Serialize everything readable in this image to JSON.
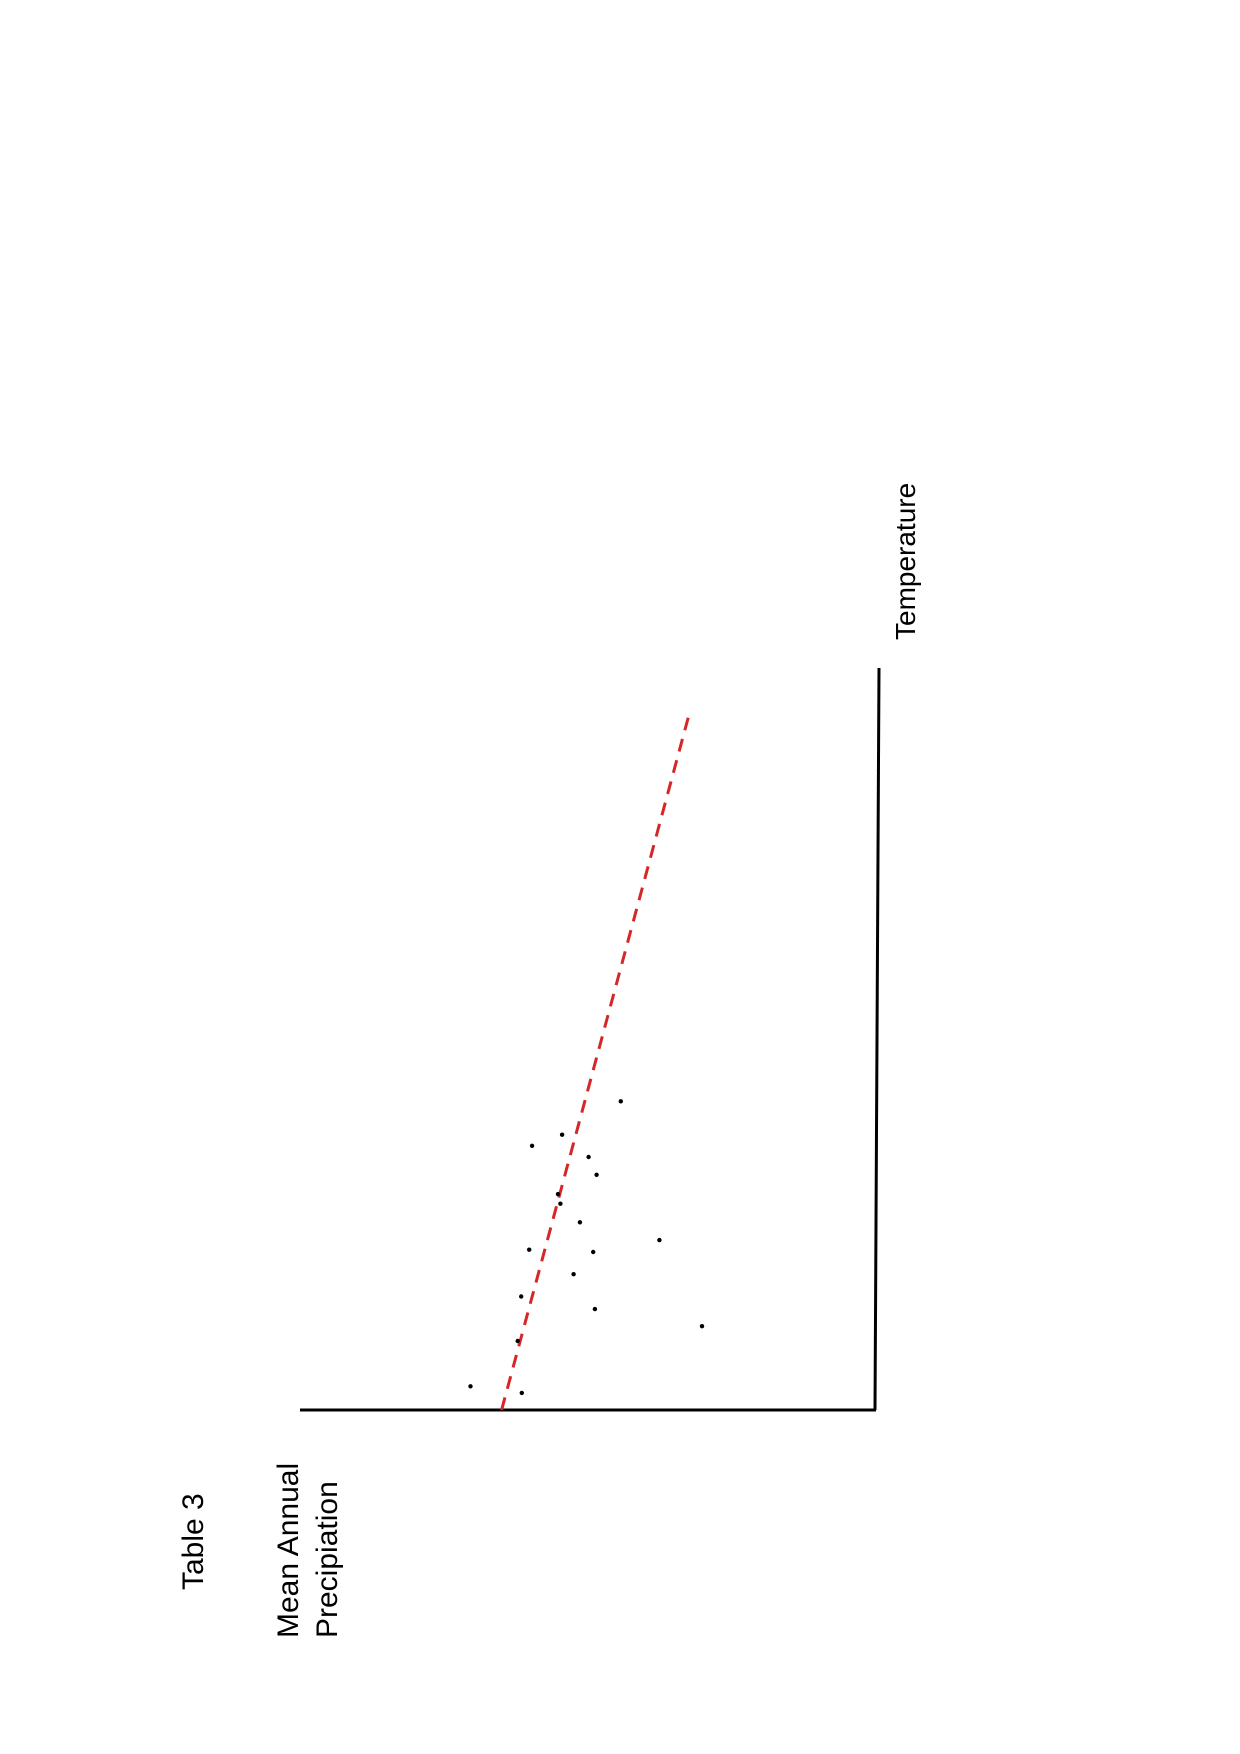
{
  "page_title": "Table 3",
  "chart_data": {
    "type": "scatter",
    "title": "Table 3",
    "xlabel": "Temperature",
    "ylabel_lines": [
      "Mean Annual",
      "Precipiation"
    ],
    "grid": false,
    "orientation": "rotated-90-ccw",
    "xlim": [
      0,
      100
    ],
    "ylim": [
      0,
      100
    ],
    "points": [
      {
        "x": 3.2,
        "y": 70.4
      },
      {
        "x": 9.3,
        "y": 62.2
      },
      {
        "x": 15.3,
        "y": 61.6
      },
      {
        "x": 18.3,
        "y": 52.5
      },
      {
        "x": 21.3,
        "y": 49.1
      },
      {
        "x": 22.9,
        "y": 37.6
      },
      {
        "x": 29.1,
        "y": 55.2
      },
      {
        "x": 35.6,
        "y": 59.7
      },
      {
        "x": 41.6,
        "y": 44.3
      },
      {
        "x": 37.1,
        "y": 54.5
      },
      {
        "x": 34.1,
        "y": 49.9
      },
      {
        "x": 31.7,
        "y": 48.5
      },
      {
        "x": 25.3,
        "y": 51.4
      },
      {
        "x": 27.8,
        "y": 54.8
      },
      {
        "x": 21.6,
        "y": 60.2
      },
      {
        "x": 2.3,
        "y": 61.5
      },
      {
        "x": 11.3,
        "y": 30.2
      },
      {
        "x": 13.6,
        "y": 48.8
      }
    ],
    "trendline": {
      "style": "dashed",
      "color": "#d62728",
      "from": {
        "x": 0,
        "y": 65
      },
      "to": {
        "x": 94.2,
        "y": 32.3
      }
    },
    "colors": {
      "axis": "#000000",
      "points": "#000000"
    }
  }
}
